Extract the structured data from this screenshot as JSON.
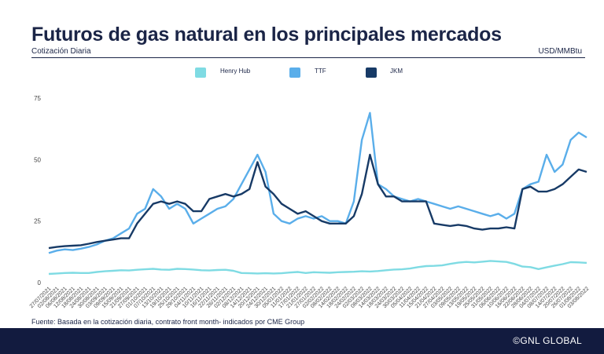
{
  "header": {
    "title": "Futuros de gas natural en los principales mercados",
    "subtitle": "Cotización Diaria",
    "unit": "USD/MMBtu"
  },
  "footer": {
    "source": "Fuente: Basada en la cotización diaria, contrato front month- indicados por CME Group",
    "brand": "©GNL GLOBAL"
  },
  "colors": {
    "henry_hub": "#7fdbe3",
    "ttf": "#5aaeea",
    "jkm": "#173a66",
    "title": "#1b2547",
    "footer_bg": "#121b3f"
  },
  "chart_data": {
    "type": "line",
    "title": "",
    "xlabel": "",
    "ylabel": "",
    "ylim": [
      0,
      75
    ],
    "yticks": [
      0,
      25,
      50,
      75
    ],
    "grid": false,
    "legend": "top-center",
    "categories": [
      "27/07/2021",
      "02/08/2021",
      "06/08/2021",
      "12/08/2021",
      "18/08/2021",
      "24/08/2021",
      "30/08/2021",
      "03/09/2021",
      "09/09/2021",
      "15/09/2021",
      "21/09/2021",
      "27/09/2021",
      "01/10/2021",
      "07/10/2021",
      "13/10/2021",
      "19/10/2021",
      "25/10/2021",
      "29/10/2021",
      "04/11/2021",
      "10/11/2021",
      "16/11/2021",
      "22/11/2021",
      "26/11/2021",
      "02/12/2021",
      "08/12/2021",
      "14/12/2021",
      "20/12/2021",
      "24/12/2021",
      "30/12/2021",
      "05/01/2022",
      "11/01/2022",
      "17/01/2022",
      "21/01/2022",
      "27/01/2022",
      "02/02/2022",
      "08/02/2022",
      "14/02/2022",
      "18/02/2022",
      "24/02/2022",
      "02/03/2022",
      "08/03/2022",
      "14/03/2022",
      "18/03/2022",
      "24/03/2022",
      "30/03/2022",
      "05/04/2022",
      "11/04/2022",
      "15/04/2022",
      "21/04/2022",
      "27/04/2022",
      "03/05/2022",
      "09/05/2022",
      "13/05/2022",
      "19/05/2022",
      "25/05/2022",
      "31/05/2022",
      "06/06/2022",
      "10/06/2022",
      "16/06/2022",
      "22/06/2022",
      "28/06/2022",
      "04/07/2022",
      "08/07/2022",
      "14/07/2022",
      "20/07/2022",
      "26/07/2022",
      "01/08/2022",
      "03/08/2022"
    ],
    "series": [
      {
        "name": "Henry Hub",
        "values": [
          3.5,
          3.7,
          3.9,
          4.0,
          3.9,
          3.9,
          4.3,
          4.6,
          4.8,
          5.0,
          4.9,
          5.2,
          5.4,
          5.6,
          5.3,
          5.2,
          5.6,
          5.5,
          5.3,
          5.0,
          4.9,
          5.1,
          5.2,
          4.8,
          3.9,
          3.8,
          3.7,
          3.8,
          3.7,
          3.8,
          4.1,
          4.3,
          3.9,
          4.2,
          4.1,
          4.0,
          4.2,
          4.3,
          4.4,
          4.6,
          4.5,
          4.7,
          5.0,
          5.3,
          5.4,
          5.7,
          6.3,
          6.7,
          6.8,
          7.0,
          7.6,
          8.1,
          8.4,
          8.2,
          8.5,
          8.8,
          8.6,
          8.4,
          7.6,
          6.5,
          6.3,
          5.5,
          6.2,
          6.9,
          7.5,
          8.3,
          8.2,
          8.0
        ]
      },
      {
        "name": "TTF",
        "values": [
          12.0,
          13.0,
          13.5,
          13.2,
          13.8,
          14.5,
          15.5,
          17.0,
          18.0,
          20.0,
          22.0,
          28.0,
          30.0,
          38.0,
          35.0,
          30.0,
          32.0,
          30.0,
          24.0,
          26.0,
          28.0,
          30.0,
          31.0,
          34.0,
          40.0,
          46.0,
          52.0,
          45.0,
          28.0,
          25.0,
          24.0,
          26.0,
          27.0,
          26.0,
          27.0,
          25.0,
          25.0,
          24.0,
          33.0,
          58.0,
          69.0,
          40.0,
          38.0,
          35.0,
          34.0,
          33.0,
          34.0,
          33.0,
          32.0,
          31.0,
          30.0,
          31.0,
          30.0,
          29.0,
          28.0,
          27.0,
          28.0,
          26.0,
          28.0,
          38.0,
          40.0,
          41.0,
          52.0,
          45.0,
          48.0,
          58.0,
          61.0,
          59.0
        ]
      },
      {
        "name": "JKM",
        "values": [
          14.0,
          14.5,
          14.8,
          15.0,
          15.2,
          15.8,
          16.5,
          17.0,
          17.5,
          18.0,
          18.0,
          24.0,
          28.0,
          32.0,
          33.0,
          32.0,
          33.0,
          32.0,
          29.0,
          29.0,
          34.0,
          35.0,
          36.0,
          35.0,
          36.0,
          38.0,
          49.0,
          39.0,
          36.0,
          32.0,
          30.0,
          28.0,
          29.0,
          27.0,
          25.0,
          24.0,
          24.0,
          24.0,
          27.0,
          36.0,
          52.0,
          40.0,
          35.0,
          35.0,
          33.0,
          33.0,
          33.0,
          33.0,
          24.0,
          23.5,
          23.0,
          23.5,
          23.0,
          22.0,
          21.5,
          22.0,
          22.0,
          22.5,
          22.0,
          38.0,
          39.0,
          37.0,
          37.0,
          38.0,
          40.0,
          43.0,
          46.0,
          45.0
        ]
      }
    ]
  }
}
